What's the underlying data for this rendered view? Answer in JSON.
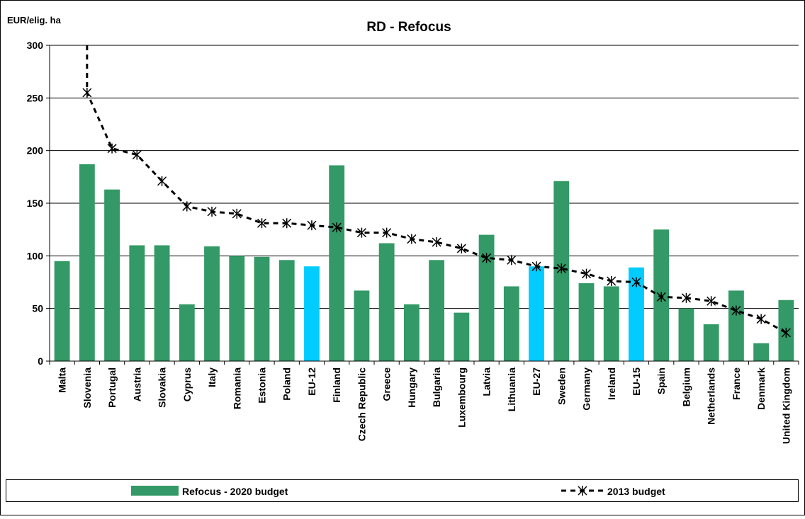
{
  "chart_data": {
    "type": "bar",
    "title": "RD - Refocus",
    "ylabel": "EUR/elig. ha",
    "xlabel": "",
    "ylim": [
      0,
      300
    ],
    "yticks": [
      0,
      50,
      100,
      150,
      200,
      250,
      300
    ],
    "grid": true,
    "legend_position": "bottom",
    "categories": [
      "Malta",
      "Slovenia",
      "Portugal",
      "Austria",
      "Slovakia",
      "Cyprus",
      "Italy",
      "Romania",
      "Estonia",
      "Poland",
      "EU-12",
      "Finland",
      "Czech Republic",
      "Greece",
      "Hungary",
      "Bulgaria",
      "Luxembourg",
      "Latvia",
      "Lithuania",
      "EU-27",
      "Sweden",
      "Germany",
      "Ireland",
      "EU-15",
      "Spain",
      "Belgium",
      "Netherlands",
      "France",
      "Denmark",
      "United Kingdom"
    ],
    "series": [
      {
        "name": "Refocus - 2020 budget",
        "kind": "bar",
        "color": "#339966",
        "highlight_color": "#00ccff",
        "highlight_categories": [
          "EU-12",
          "EU-27",
          "EU-15"
        ],
        "values": [
          95,
          187,
          163,
          110,
          110,
          54,
          109,
          100,
          99,
          96,
          90,
          186,
          67,
          112,
          54,
          96,
          46,
          120,
          71,
          90,
          171,
          74,
          71,
          89,
          125,
          50,
          35,
          67,
          17,
          58
        ]
      },
      {
        "name": "2013 budget",
        "kind": "line",
        "style": "dashed",
        "marker": "star",
        "color": "#000000",
        "values": [
          null,
          255,
          202,
          196,
          171,
          147,
          142,
          140,
          131,
          131,
          129,
          127,
          122,
          122,
          116,
          113,
          107,
          98,
          96,
          90,
          88,
          83,
          76,
          75,
          61,
          60,
          57,
          48,
          40,
          27
        ],
        "above_axis_first": true
      }
    ]
  }
}
